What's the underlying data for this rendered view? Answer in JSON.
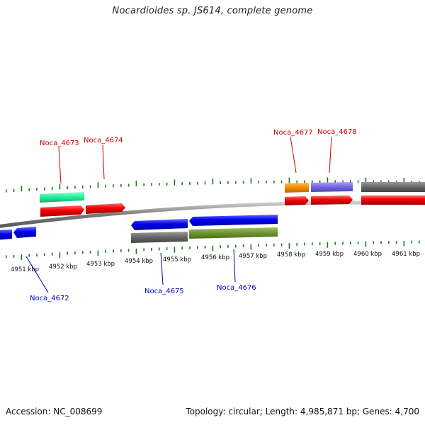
{
  "header": {
    "title": "Nocardioides sp. JS614, complete genome"
  },
  "footer": {
    "accession": "Accession: NC_008699",
    "summary": "Topology: circular; Length: 4,985,871 bp; Genes: 4,700"
  },
  "colors": {
    "forward_label": "#cc0000",
    "reverse_label": "#0000bb",
    "backbone": "#888888",
    "ticks": "#1a7a1a"
  },
  "axis_labels": [
    "4951 kbp",
    "4952 kbp",
    "4953 kbp",
    "4954 kbp",
    "4955 kbp",
    "4956 kbp",
    "4957 kbp",
    "4958 kbp",
    "4959 kbp",
    "4960 kbp",
    "4961 kbp"
  ],
  "gene_labels": {
    "forward": [
      "Noca_4673",
      "Noca_4674",
      "Noca_4677",
      "Noca_4678"
    ],
    "reverse": [
      "Noca_4672",
      "Noca_4675",
      "Noca_4676"
    ]
  }
}
